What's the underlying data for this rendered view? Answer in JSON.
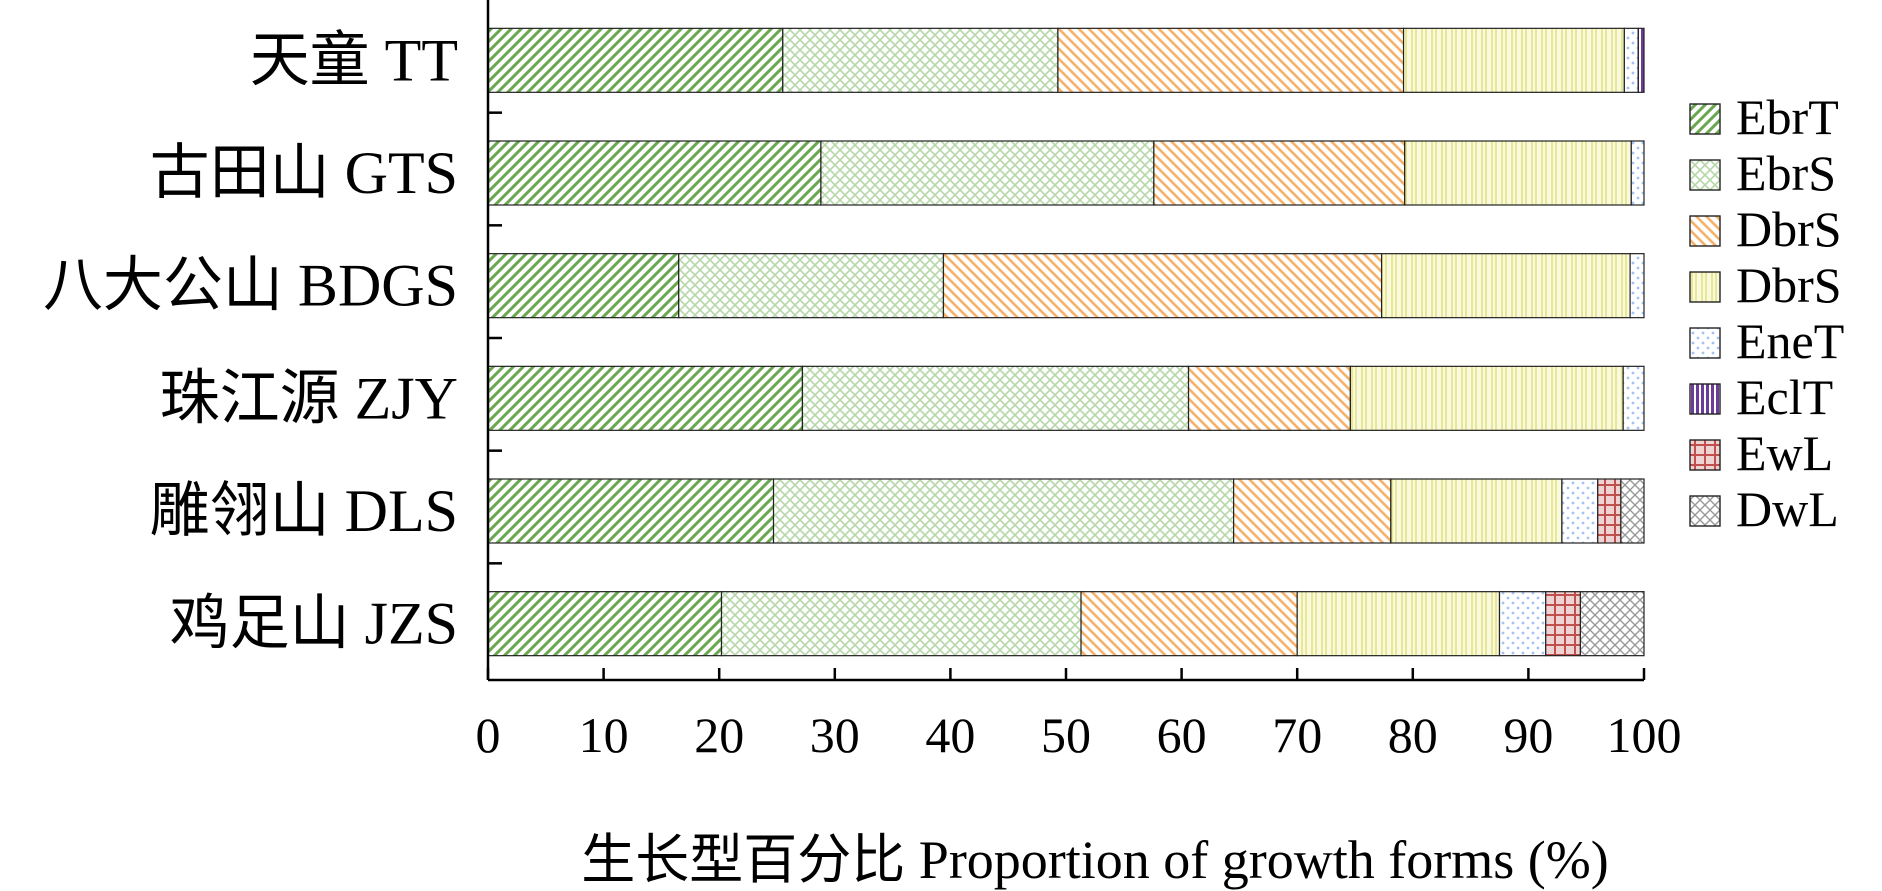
{
  "chart_data": {
    "type": "bar",
    "orientation": "horizontal",
    "stacked": true,
    "categories": [
      "天童 TT",
      "古田山 GTS",
      "八大公山 BDGS",
      "珠江源 ZJY",
      "雕翎山 DLS",
      "鸡足山 JZS"
    ],
    "series": [
      {
        "name": "EbrT",
        "color": "#6aa84f",
        "pattern": "diag-right",
        "values": [
          25.5,
          28.8,
          16.5,
          27.2,
          24.7,
          20.2
        ]
      },
      {
        "name": "EbrS",
        "color": "#b6d7a8",
        "pattern": "crosshatch",
        "values": [
          23.8,
          28.8,
          22.9,
          33.4,
          39.8,
          31.1
        ]
      },
      {
        "name": "DbrS",
        "color": "#f6b26b",
        "pattern": "diag-left",
        "values": [
          29.9,
          21.7,
          37.9,
          14.0,
          13.6,
          18.7
        ]
      },
      {
        "name": "DbrS",
        "color": "#e6e68a",
        "pattern": "vertical-lines",
        "values": [
          19.1,
          19.6,
          21.5,
          23.6,
          14.8,
          17.5
        ]
      },
      {
        "name": "EneT",
        "color": "#a4c2f4",
        "pattern": "dots",
        "values": [
          1.2,
          1.1,
          1.2,
          1.8,
          3.1,
          4.0
        ]
      },
      {
        "name": "EclT",
        "color": "#6a3d9a",
        "pattern": "vertical-bars",
        "values": [
          0.5,
          0,
          0,
          0,
          0,
          0
        ]
      },
      {
        "name": "EwL",
        "color": "#c0504d",
        "pattern": "grid",
        "values": [
          0,
          0,
          0,
          0,
          2.0,
          3.0
        ]
      },
      {
        "name": "DwL",
        "color": "#999999",
        "pattern": "checker",
        "values": [
          0,
          0,
          0,
          0,
          2.0,
          5.5
        ]
      }
    ],
    "xlim": [
      0,
      100
    ],
    "xticks": [
      0,
      10,
      20,
      30,
      40,
      50,
      60,
      70,
      80,
      90,
      100
    ],
    "xlabel": "生长型百分比 Proportion of growth forms (%)",
    "ylabel": "",
    "title": "",
    "legend": {
      "position": "right"
    },
    "grid": false
  }
}
